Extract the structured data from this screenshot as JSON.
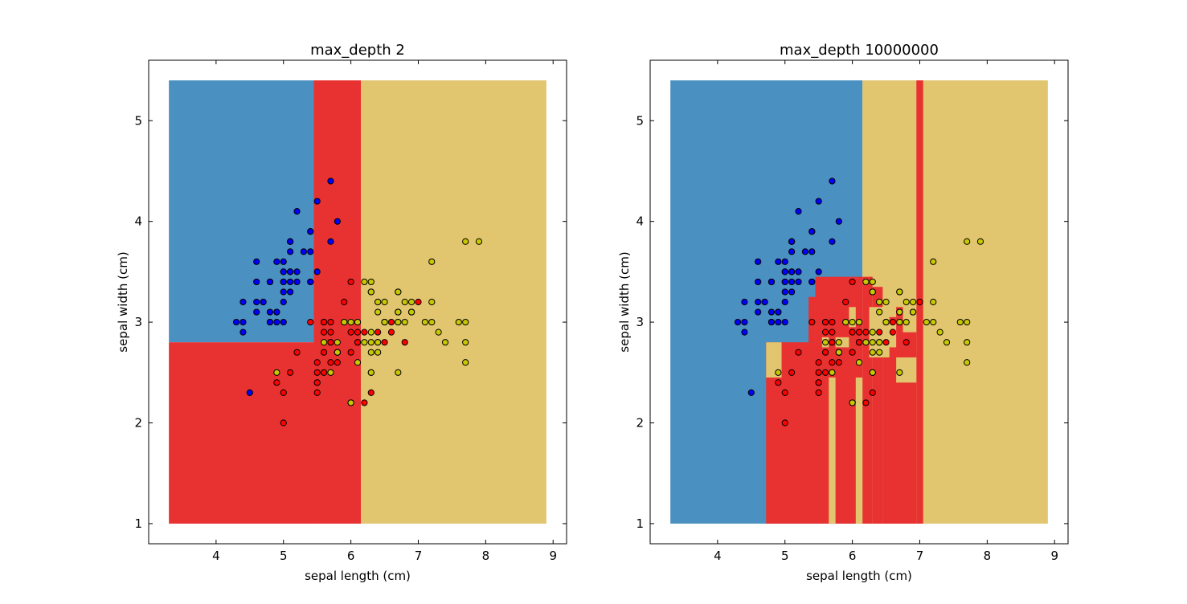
{
  "chart_data": [
    {
      "type": "scatter",
      "title": "max_depth 2",
      "xlabel": "sepal length (cm)",
      "ylabel": "sepal width (cm)",
      "xlim": [
        3.0,
        9.2
      ],
      "ylim": [
        0.8,
        5.6
      ],
      "xticks": [
        "4",
        "5",
        "6",
        "7",
        "8",
        "9"
      ],
      "yticks": [
        "1",
        "2",
        "3",
        "4",
        "5"
      ],
      "grid": false,
      "legend": "none",
      "region_colors": {
        "setosa": "#4a90c0",
        "versicolor": "#e83232",
        "virginica": "#e2c56f"
      },
      "point_colors": {
        "setosa": "#0000ff",
        "versicolor": "#ff0000",
        "virginica": "#c8c800"
      },
      "regions": [
        {
          "cls": "setosa",
          "x0": 3.3,
          "x1": 5.45,
          "y0": 2.8,
          "y1": 5.4
        },
        {
          "cls": "versicolor",
          "x0": 3.3,
          "x1": 5.45,
          "y0": 1.0,
          "y1": 2.8
        },
        {
          "cls": "versicolor",
          "x0": 5.45,
          "x1": 6.15,
          "y0": 1.0,
          "y1": 5.4
        },
        {
          "cls": "virginica",
          "x0": 6.15,
          "x1": 8.9,
          "y0": 1.0,
          "y1": 5.4
        }
      ]
    },
    {
      "type": "scatter",
      "title": "max_depth 10000000",
      "xlabel": "sepal length (cm)",
      "ylabel": "sepal width (cm)",
      "xlim": [
        3.0,
        9.2
      ],
      "ylim": [
        0.8,
        5.6
      ],
      "xticks": [
        "4",
        "5",
        "6",
        "7",
        "8",
        "9"
      ],
      "yticks": [
        "1",
        "2",
        "3",
        "4",
        "5"
      ],
      "grid": false,
      "legend": "none",
      "region_colors": {
        "setosa": "#4a90c0",
        "versicolor": "#e83232",
        "virginica": "#e2c56f"
      },
      "point_colors": {
        "setosa": "#0000ff",
        "versicolor": "#ff0000",
        "virginica": "#c8c800"
      },
      "regions": [
        {
          "cls": "setosa",
          "x0": 3.3,
          "x1": 6.15,
          "y0": 1.0,
          "y1": 5.4
        },
        {
          "cls": "virginica",
          "x0": 6.15,
          "x1": 8.9,
          "y0": 1.0,
          "y1": 5.4
        },
        {
          "cls": "versicolor",
          "x0": 6.95,
          "x1": 7.05,
          "y0": 1.0,
          "y1": 5.4
        },
        {
          "cls": "versicolor",
          "x0": 4.72,
          "x1": 5.45,
          "y0": 1.0,
          "y1": 2.8
        },
        {
          "cls": "versicolor",
          "x0": 5.45,
          "x1": 6.15,
          "y0": 1.0,
          "y1": 3.45
        },
        {
          "cls": "versicolor",
          "x0": 5.35,
          "x1": 5.45,
          "y0": 2.8,
          "y1": 3.25
        },
        {
          "cls": "versicolor",
          "x0": 6.15,
          "x1": 6.3,
          "y0": 1.0,
          "y1": 3.45
        },
        {
          "cls": "versicolor",
          "x0": 6.3,
          "x1": 6.45,
          "y0": 1.0,
          "y1": 3.35
        },
        {
          "cls": "versicolor",
          "x0": 6.45,
          "x1": 6.95,
          "y0": 1.0,
          "y1": 3.05
        },
        {
          "cls": "versicolor",
          "x0": 6.65,
          "x1": 6.95,
          "y0": 3.05,
          "y1": 3.15
        },
        {
          "cls": "virginica",
          "x0": 4.72,
          "x1": 4.95,
          "y0": 2.45,
          "y1": 2.8
        },
        {
          "cls": "virginica",
          "x0": 5.65,
          "x1": 5.75,
          "y0": 1.0,
          "y1": 2.45
        },
        {
          "cls": "virginica",
          "x0": 6.05,
          "x1": 6.15,
          "y0": 1.0,
          "y1": 2.45
        },
        {
          "cls": "virginica",
          "x0": 5.55,
          "x1": 5.65,
          "y0": 2.75,
          "y1": 2.85
        },
        {
          "cls": "virginica",
          "x0": 5.75,
          "x1": 5.95,
          "y0": 2.75,
          "y1": 2.85
        },
        {
          "cls": "virginica",
          "x0": 5.95,
          "x1": 6.05,
          "y0": 2.95,
          "y1": 3.15
        },
        {
          "cls": "virginica",
          "x0": 6.25,
          "x1": 6.55,
          "y0": 2.65,
          "y1": 3.15
        },
        {
          "cls": "virginica",
          "x0": 6.45,
          "x1": 6.65,
          "y0": 2.75,
          "y1": 3.0
        },
        {
          "cls": "virginica",
          "x0": 6.65,
          "x1": 6.95,
          "y0": 2.4,
          "y1": 2.65
        },
        {
          "cls": "virginica",
          "x0": 6.75,
          "x1": 6.95,
          "y0": 2.9,
          "y1": 3.2
        }
      ]
    }
  ],
  "points": {
    "setosa": [
      [
        5.1,
        3.5
      ],
      [
        4.9,
        3.0
      ],
      [
        4.7,
        3.2
      ],
      [
        4.6,
        3.1
      ],
      [
        5.0,
        3.6
      ],
      [
        5.4,
        3.9
      ],
      [
        4.6,
        3.4
      ],
      [
        5.0,
        3.4
      ],
      [
        4.4,
        2.9
      ],
      [
        4.9,
        3.1
      ],
      [
        5.4,
        3.7
      ],
      [
        4.8,
        3.4
      ],
      [
        4.8,
        3.0
      ],
      [
        4.3,
        3.0
      ],
      [
        5.8,
        4.0
      ],
      [
        5.7,
        4.4
      ],
      [
        5.4,
        3.9
      ],
      [
        5.1,
        3.5
      ],
      [
        5.7,
        3.8
      ],
      [
        5.1,
        3.8
      ],
      [
        5.4,
        3.4
      ],
      [
        5.1,
        3.7
      ],
      [
        4.6,
        3.6
      ],
      [
        5.1,
        3.3
      ],
      [
        4.8,
        3.4
      ],
      [
        5.0,
        3.0
      ],
      [
        5.0,
        3.4
      ],
      [
        5.2,
        3.5
      ],
      [
        5.2,
        3.4
      ],
      [
        4.7,
        3.2
      ],
      [
        4.8,
        3.1
      ],
      [
        5.4,
        3.4
      ],
      [
        5.2,
        4.1
      ],
      [
        5.5,
        4.2
      ],
      [
        4.9,
        3.1
      ],
      [
        5.0,
        3.2
      ],
      [
        5.5,
        3.5
      ],
      [
        4.9,
        3.6
      ],
      [
        4.4,
        3.0
      ],
      [
        5.1,
        3.4
      ],
      [
        5.0,
        3.5
      ],
      [
        4.5,
        2.3
      ],
      [
        4.4,
        3.2
      ],
      [
        5.0,
        3.5
      ],
      [
        5.1,
        3.8
      ],
      [
        4.8,
        3.0
      ],
      [
        5.1,
        3.8
      ],
      [
        4.6,
        3.2
      ],
      [
        5.3,
        3.7
      ],
      [
        5.0,
        3.3
      ]
    ],
    "versicolor": [
      [
        7.0,
        3.2
      ],
      [
        6.4,
        3.2
      ],
      [
        6.9,
        3.1
      ],
      [
        5.5,
        2.3
      ],
      [
        6.5,
        2.8
      ],
      [
        5.7,
        2.8
      ],
      [
        6.3,
        3.3
      ],
      [
        4.9,
        2.4
      ],
      [
        6.6,
        2.9
      ],
      [
        5.2,
        2.7
      ],
      [
        5.0,
        2.0
      ],
      [
        5.9,
        3.0
      ],
      [
        6.0,
        2.2
      ],
      [
        6.1,
        2.9
      ],
      [
        5.6,
        2.9
      ],
      [
        6.7,
        3.1
      ],
      [
        5.6,
        3.0
      ],
      [
        5.8,
        2.7
      ],
      [
        6.2,
        2.2
      ],
      [
        5.6,
        2.5
      ],
      [
        5.9,
        3.2
      ],
      [
        6.1,
        2.8
      ],
      [
        6.3,
        2.5
      ],
      [
        6.1,
        2.8
      ],
      [
        6.4,
        2.9
      ],
      [
        6.6,
        3.0
      ],
      [
        6.8,
        2.8
      ],
      [
        6.7,
        3.0
      ],
      [
        6.0,
        2.9
      ],
      [
        5.7,
        2.6
      ],
      [
        5.5,
        2.4
      ],
      [
        5.5,
        2.4
      ],
      [
        5.8,
        2.7
      ],
      [
        6.0,
        2.7
      ],
      [
        5.4,
        3.0
      ],
      [
        6.0,
        3.4
      ],
      [
        6.7,
        3.1
      ],
      [
        6.3,
        2.3
      ],
      [
        5.6,
        3.0
      ],
      [
        5.5,
        2.5
      ],
      [
        5.5,
        2.6
      ],
      [
        6.1,
        3.0
      ],
      [
        5.8,
        2.6
      ],
      [
        5.0,
        2.3
      ],
      [
        5.6,
        2.7
      ],
      [
        5.7,
        3.0
      ],
      [
        5.7,
        2.9
      ],
      [
        6.2,
        2.9
      ],
      [
        5.1,
        2.5
      ],
      [
        5.7,
        2.8
      ]
    ],
    "virginica": [
      [
        6.3,
        3.3
      ],
      [
        5.8,
        2.7
      ],
      [
        7.1,
        3.0
      ],
      [
        6.3,
        2.9
      ],
      [
        6.5,
        3.0
      ],
      [
        7.6,
        3.0
      ],
      [
        4.9,
        2.5
      ],
      [
        7.3,
        2.9
      ],
      [
        6.7,
        2.5
      ],
      [
        7.2,
        3.6
      ],
      [
        6.5,
        3.2
      ],
      [
        6.4,
        2.7
      ],
      [
        6.8,
        3.0
      ],
      [
        5.7,
        2.5
      ],
      [
        5.8,
        2.8
      ],
      [
        6.4,
        3.2
      ],
      [
        6.5,
        3.0
      ],
      [
        7.7,
        3.8
      ],
      [
        7.7,
        2.6
      ],
      [
        6.0,
        2.2
      ],
      [
        6.9,
        3.2
      ],
      [
        5.6,
        2.8
      ],
      [
        7.7,
        2.8
      ],
      [
        6.3,
        2.7
      ],
      [
        6.7,
        3.3
      ],
      [
        7.2,
        3.2
      ],
      [
        6.2,
        2.8
      ],
      [
        6.1,
        3.0
      ],
      [
        6.4,
        2.8
      ],
      [
        7.2,
        3.0
      ],
      [
        7.4,
        2.8
      ],
      [
        7.9,
        3.8
      ],
      [
        6.4,
        2.8
      ],
      [
        6.3,
        2.8
      ],
      [
        6.1,
        2.6
      ],
      [
        7.7,
        3.0
      ],
      [
        6.3,
        3.4
      ],
      [
        6.4,
        3.1
      ],
      [
        6.0,
        3.0
      ],
      [
        6.9,
        3.1
      ],
      [
        6.7,
        3.1
      ],
      [
        6.9,
        3.1
      ],
      [
        5.8,
        2.7
      ],
      [
        6.8,
        3.2
      ],
      [
        6.7,
        3.3
      ],
      [
        6.7,
        3.0
      ],
      [
        6.3,
        2.5
      ],
      [
        6.5,
        3.0
      ],
      [
        6.2,
        3.4
      ],
      [
        5.9,
        3.0
      ]
    ]
  }
}
